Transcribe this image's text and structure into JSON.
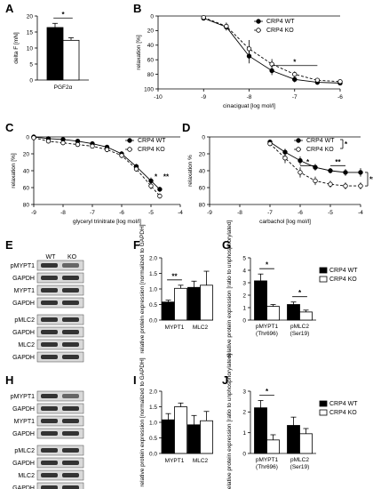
{
  "panels": {
    "A": {
      "label": "A",
      "chart_data": {
        "type": "bar",
        "ylabel": "delta F [mN]",
        "ylim": [
          0,
          20
        ],
        "yticks": [
          0,
          5,
          10,
          15,
          20
        ],
        "categories": [
          "PGF2α"
        ],
        "series": [
          {
            "name": "CRP4 WT",
            "values": [
              16.4
            ],
            "err": [
              1.3
            ],
            "fill": "#000000"
          },
          {
            "name": "CRP4 KO",
            "values": [
              12.4
            ],
            "err": [
              0.8
            ],
            "fill": "#ffffff"
          }
        ],
        "significance": [
          {
            "between": [
              "CRP4 WT",
              "CRP4 KO"
            ],
            "label": "*"
          }
        ]
      }
    },
    "B": {
      "label": "B",
      "chart_data": {
        "type": "line",
        "xlabel": "cinaciguat [log mol/l]",
        "ylabel": "relaxation [%]",
        "xlim": [
          -10,
          -6
        ],
        "ylim": [
          0,
          100
        ],
        "y_inverted": true,
        "xticks": [
          -10,
          -9,
          -8,
          -7,
          -6
        ],
        "yticks": [
          0,
          20,
          40,
          60,
          80,
          100
        ],
        "series": [
          {
            "name": "CRP4 WT",
            "marker": "filled-circle",
            "x": [
              -9,
              -8.5,
              -8,
              -7.5,
              -7,
              -6.5,
              -6
            ],
            "y": [
              3,
              15,
              55,
              75,
              87,
              91,
              92
            ],
            "err": [
              2,
              5,
              10,
              6,
              4,
              3,
              3
            ]
          },
          {
            "name": "CRP4 KO",
            "marker": "open-circle",
            "x": [
              -9,
              -8.5,
              -8,
              -7.5,
              -7,
              -6.5,
              -6
            ],
            "y": [
              2,
              14,
              45,
              66,
              80,
              88,
              90
            ],
            "err": [
              2,
              5,
              12,
              7,
              4,
              3,
              3
            ]
          }
        ],
        "significance": [
          {
            "x_range": [
              -7.5,
              -6.5
            ],
            "label": "*"
          }
        ],
        "legend": [
          "CRP4 WT",
          "CRP4 KO"
        ],
        "legend_position": "top-right"
      }
    },
    "C": {
      "label": "C",
      "chart_data": {
        "type": "line",
        "xlabel": "glyceryl trinitrate [log mol/l]",
        "ylabel": "relaxation [%]",
        "xlim": [
          -9,
          -4
        ],
        "ylim": [
          0,
          80
        ],
        "y_inverted": true,
        "xticks": [
          -9,
          -8,
          -7,
          -6,
          -5,
          -4
        ],
        "yticks": [
          0,
          20,
          40,
          60,
          80
        ],
        "series": [
          {
            "name": "CRP4 WT",
            "marker": "filled-circle",
            "x": [
              -9,
              -8.5,
              -8,
              -7.5,
              -7,
              -6.5,
              -6,
              -5.5,
              -5,
              -4.7
            ],
            "y": [
              0,
              2,
              3,
              5,
              8,
              12,
              20,
              35,
              52,
              62
            ],
            "err": [
              1,
              1,
              1,
              2,
              2,
              2,
              3,
              3,
              4,
              3
            ]
          },
          {
            "name": "CRP4 KO",
            "marker": "open-circle",
            "x": [
              -9,
              -8.5,
              -8,
              -7.5,
              -7,
              -6.5,
              -6,
              -5.5,
              -5,
              -4.7
            ],
            "y": [
              1,
              5,
              7,
              9,
              11,
              15,
              22,
              38,
              58,
              70
            ],
            "err": [
              1,
              2,
              2,
              2,
              2,
              3,
              3,
              3,
              4,
              3
            ]
          }
        ],
        "significance": [
          {
            "x": -5,
            "label": "*"
          },
          {
            "x": -4.7,
            "label": "**"
          }
        ],
        "legend": [
          "CRP4 WT",
          "CRP4 KO"
        ],
        "legend_position": "top-right"
      }
    },
    "D": {
      "label": "D",
      "chart_data": {
        "type": "line",
        "xlabel": "carbachol [log mol/l]",
        "ylabel": "relaxation %",
        "xlim": [
          -9,
          -4
        ],
        "ylim": [
          0,
          80
        ],
        "y_inverted": true,
        "xticks": [
          -9,
          -8,
          -7,
          -6,
          -5,
          -4
        ],
        "yticks": [
          0,
          20,
          40,
          60,
          80
        ],
        "series": [
          {
            "name": "CRP4 WT",
            "marker": "filled-circle",
            "x": [
              -7,
              -6.5,
              -6,
              -5.5,
              -5,
              -4.5,
              -4
            ],
            "y": [
              6,
              18,
              28,
              36,
              40,
              42,
              42
            ],
            "err": [
              3,
              4,
              5,
              4,
              3,
              4,
              5
            ]
          },
          {
            "name": "CRP4 KO",
            "marker": "open-circle",
            "x": [
              -7,
              -6.5,
              -6,
              -5.5,
              -5,
              -4.5,
              -4
            ],
            "y": [
              8,
              25,
              42,
              52,
              56,
              58,
              58
            ],
            "err": [
              3,
              6,
              6,
              5,
              4,
              4,
              4
            ]
          }
        ],
        "significance": [
          {
            "x_range": [
              -6,
              -5.5
            ],
            "label": "*"
          },
          {
            "x_range": [
              -5,
              -4.5
            ],
            "label": "**"
          },
          {
            "bracket": "WT vs KO curve",
            "label": "**"
          },
          {
            "bracket": "legend",
            "label": "*"
          }
        ],
        "legend": [
          "CRP4 WT",
          "CRP4 KO"
        ],
        "legend_position": "top-right"
      }
    },
    "E": {
      "label": "E",
      "columns": [
        "WT",
        "KO"
      ],
      "rows": [
        "pMYPT1",
        "GAPDH",
        "MYPT1",
        "GAPDH",
        "pMLC2",
        "GAPDH",
        "MLC2",
        "GAPDH"
      ]
    },
    "F": {
      "label": "F",
      "chart_data": {
        "type": "bar",
        "ylabel": "relative protein expression [normalized to GAPDH]",
        "ylim": [
          0,
          2.0
        ],
        "yticks": [
          0.0,
          0.5,
          1.0,
          1.5,
          2.0
        ],
        "categories": [
          "MYPT1",
          "MLC2"
        ],
        "series": [
          {
            "name": "CRP4 WT",
            "values": [
              0.58,
              1.05
            ],
            "err": [
              0.06,
              0.2
            ],
            "fill": "#000000"
          },
          {
            "name": "CRP4 KO",
            "values": [
              1.02,
              1.12
            ],
            "err": [
              0.1,
              0.45
            ],
            "fill": "#ffffff"
          }
        ],
        "significance": [
          {
            "category": "MYPT1",
            "label": "**"
          }
        ]
      }
    },
    "G": {
      "label": "G",
      "chart_data": {
        "type": "bar",
        "ylabel": "relative protein expression [ratio to unphosphorylated]",
        "ylim": [
          0,
          5
        ],
        "yticks": [
          0,
          1,
          2,
          3,
          4,
          5
        ],
        "categories": [
          "pMYPT1 (Thr696)",
          "pMLC2 (Ser19)"
        ],
        "series": [
          {
            "name": "CRP4 WT",
            "values": [
              3.15,
              1.25
            ],
            "err": [
              0.55,
              0.2
            ],
            "fill": "#000000"
          },
          {
            "name": "CRP4 KO",
            "values": [
              1.1,
              0.65
            ],
            "err": [
              0.15,
              0.15
            ],
            "fill": "#ffffff"
          }
        ],
        "significance": [
          {
            "category": "pMYPT1 (Thr696)",
            "label": "*"
          },
          {
            "category": "pMLC2 (Ser19)",
            "label": "*"
          }
        ],
        "legend": [
          "CRP4 WT",
          "CRP4 KO"
        ],
        "legend_position": "right"
      }
    },
    "H": {
      "label": "H",
      "rows": [
        "pMYPT1",
        "GAPDH",
        "MYPT1",
        "GAPDH",
        "pMLC2",
        "GAPDH",
        "MLC2",
        "GAPDH"
      ]
    },
    "I": {
      "label": "I",
      "chart_data": {
        "type": "bar",
        "ylabel": "relative protein expression [normalized to GAPDH]",
        "ylim": [
          0,
          2.0
        ],
        "yticks": [
          0.0,
          0.5,
          1.0,
          1.5,
          2.0
        ],
        "categories": [
          "MYPT1",
          "MLC2"
        ],
        "series": [
          {
            "name": "CRP4 WT",
            "values": [
              1.08,
              0.92
            ],
            "err": [
              0.2,
              0.3
            ],
            "fill": "#000000"
          },
          {
            "name": "CRP4 KO",
            "values": [
              1.5,
              1.05
            ],
            "err": [
              0.12,
              0.3
            ],
            "fill": "#ffffff"
          }
        ]
      }
    },
    "J": {
      "label": "J",
      "chart_data": {
        "type": "bar",
        "ylabel": "relative protein expression [ratio to unphosphorylated]",
        "ylim": [
          0,
          3
        ],
        "yticks": [
          0,
          1,
          2,
          3
        ],
        "categories": [
          "pMYPT1 (Thr696)",
          "pMLC2 (Ser19)"
        ],
        "series": [
          {
            "name": "CRP4 WT",
            "values": [
              2.2,
              1.35
            ],
            "err": [
              0.35,
              0.4
            ],
            "fill": "#000000"
          },
          {
            "name": "CRP4 KO",
            "values": [
              0.65,
              0.95
            ],
            "err": [
              0.25,
              0.25
            ],
            "fill": "#ffffff"
          }
        ],
        "significance": [
          {
            "category": "pMYPT1 (Thr696)",
            "label": "*"
          }
        ],
        "legend": [
          "CRP4 WT",
          "CRP4 KO"
        ],
        "legend_position": "right"
      }
    }
  }
}
